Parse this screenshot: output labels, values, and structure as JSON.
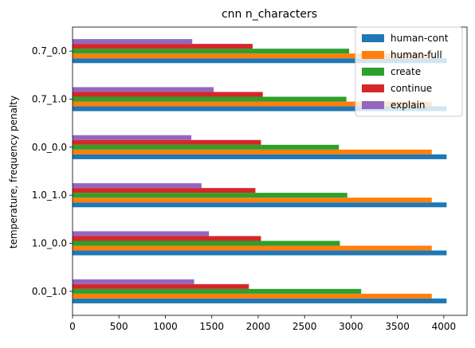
{
  "chart_data": {
    "type": "bar",
    "orientation": "horizontal",
    "title": "cnn n_characters",
    "xlabel": "",
    "ylabel": "temperature, frequency penalty",
    "categories": [
      "0.0_1.0",
      "1.0_0.0",
      "1.0_1.0",
      "0.0_0.0",
      "0.7_1.0",
      "0.7_0.0"
    ],
    "xlim": [
      0,
      4250
    ],
    "xticks": [
      0,
      500,
      1000,
      1500,
      2000,
      2500,
      3000,
      3500,
      4000
    ],
    "grid": false,
    "legend_position": "top-right",
    "series": [
      {
        "name": "human-cont",
        "color": "#1f77b4",
        "values": [
          4030,
          4030,
          4030,
          4030,
          4030,
          4030
        ]
      },
      {
        "name": "human-full",
        "color": "#ff7f0e",
        "values": [
          3870,
          3870,
          3870,
          3870,
          3870,
          3870
        ]
      },
      {
        "name": "create",
        "color": "#2ca02c",
        "values": [
          3110,
          2880,
          2960,
          2870,
          2950,
          2980
        ]
      },
      {
        "name": "continue",
        "color": "#d62728",
        "values": [
          1900,
          2030,
          1970,
          2030,
          2050,
          1940
        ]
      },
      {
        "name": "explain",
        "color": "#9467bd",
        "values": [
          1310,
          1470,
          1390,
          1280,
          1520,
          1290
        ]
      }
    ]
  }
}
